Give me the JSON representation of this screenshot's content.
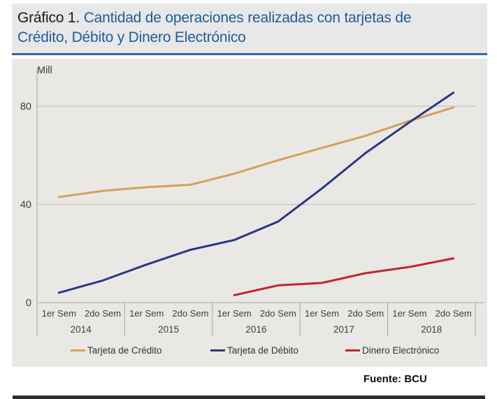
{
  "theme": {
    "title_blue": "#1e5c9e",
    "rule_blue": "#3566a7",
    "header_bg": "#e8e8e8",
    "panel_bg": "#e9e8e5",
    "axis_color": "#a8a7a4",
    "grid_color": "#bcbbb8",
    "text_color": "#3f3e3b"
  },
  "header": {
    "figure_label": "Gráfico 1.",
    "figure_title": "Cantidad de operaciones realizadas con tarjetas de Crédito, Débito y Dinero Electrónico"
  },
  "source": "Fuente: BCU",
  "chart_data": {
    "type": "line",
    "title": "Gráfico 1. Cantidad de operaciones realizadas con tarjetas de Crédito, Débito y Dinero Electrónico",
    "xlabel": "",
    "ylabel": "Mill",
    "ylim": [
      0,
      88
    ],
    "yticks": [
      0,
      40,
      80
    ],
    "grid": true,
    "legend_position": "bottom",
    "years": [
      "2014",
      "2015",
      "2016",
      "2017",
      "2018"
    ],
    "sem_labels": [
      "1er Sem",
      "2do Sem"
    ],
    "categories": [
      "1er Sem 2014",
      "2do Sem 2014",
      "1er Sem 2015",
      "2do Sem 2015",
      "1er Sem 2016",
      "2do Sem 2016",
      "1er Sem 2017",
      "2do Sem 2017",
      "1er Sem 2018",
      "2do Sem 2018"
    ],
    "series": [
      {
        "name": "Tarjeta de Crédito",
        "color": "#d2a15a",
        "values": [
          43,
          45.5,
          47,
          48,
          52.5,
          58,
          63,
          68,
          74,
          79.5
        ]
      },
      {
        "name": "Tarjeta de Débito",
        "color": "#2a3685",
        "values": [
          4,
          9,
          15.5,
          21.5,
          25.5,
          33,
          46.5,
          61,
          73.5,
          85.5
        ]
      },
      {
        "name": "Dinero Electrónico",
        "color": "#c5232a",
        "values": [
          null,
          null,
          null,
          null,
          3,
          7,
          8,
          12,
          14.5,
          18
        ]
      }
    ]
  }
}
